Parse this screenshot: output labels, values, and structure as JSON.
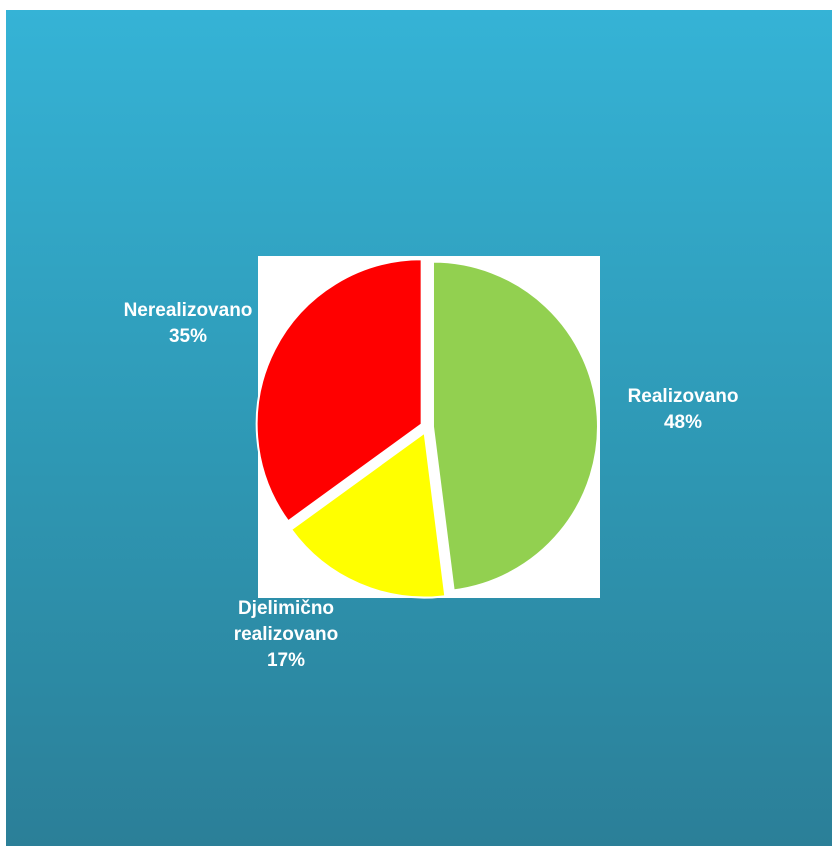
{
  "chart_data": {
    "type": "pie",
    "slices": [
      {
        "label": "Realizovano",
        "label_lines": [
          "Realizovano"
        ],
        "value": 48,
        "value_label": "48%",
        "color": "#92d050"
      },
      {
        "label": "Djelimično realizovano",
        "label_lines": [
          "Djelimično",
          "realizovano"
        ],
        "value": 17,
        "value_label": "17%",
        "color": "#ffff00"
      },
      {
        "label": "Nerealizovano",
        "label_lines": [
          "Nerealizovano"
        ],
        "value": 35,
        "value_label": "35%",
        "color": "#ff0000"
      }
    ],
    "legend": "none",
    "background": {
      "top": "#35b3d6",
      "bottom": "#2b7f98"
    },
    "plot_background": "#ffffff"
  }
}
